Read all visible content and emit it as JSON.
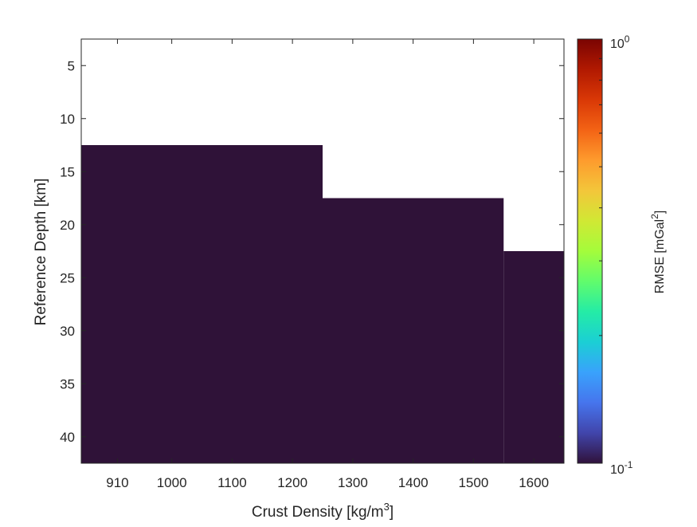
{
  "chart_data": {
    "type": "heatmap",
    "title": "",
    "xlabel": "Crust Density [kg/m",
    "xlabel_sup": "3",
    "xlabel_end": "]",
    "ylabel": "Reference Depth [km]",
    "x_ticks": [
      910,
      1000,
      1100,
      1200,
      1300,
      1400,
      1500,
      1600
    ],
    "y_ticks": [
      5,
      10,
      15,
      20,
      25,
      30,
      35,
      40
    ],
    "xlim": [
      850,
      1650
    ],
    "ylim": [
      2.5,
      42.5
    ],
    "y_reversed": true,
    "fill_color": "#2f1238",
    "cells": [
      {
        "x_range": [
          850,
          1250
        ],
        "y_range": [
          12.5,
          42.5
        ],
        "value": 0.1
      },
      {
        "x_range": [
          1250,
          1550
        ],
        "y_range": [
          17.5,
          42.5
        ],
        "value": 0.1
      },
      {
        "x_range": [
          1550,
          1650
        ],
        "y_range": [
          22.5,
          42.5
        ],
        "value": 0.1
      }
    ],
    "colorbar": {
      "label": "RMSE [mGal",
      "label_sup": "2",
      "label_end": "]",
      "scale": "log",
      "range": [
        0.1,
        1
      ],
      "tick_base": "10",
      "tick_top_exp": "0",
      "tick_bottom_exp": "-1",
      "colors": [
        "#30123b",
        "#4145ab",
        "#4675ed",
        "#39a2fc",
        "#1bcfd4",
        "#24eca6",
        "#61fc6c",
        "#a4fc3b",
        "#d1e834",
        "#f3c63a",
        "#fe9b2d",
        "#f36315",
        "#d93806",
        "#b11901",
        "#7a0402"
      ]
    }
  }
}
